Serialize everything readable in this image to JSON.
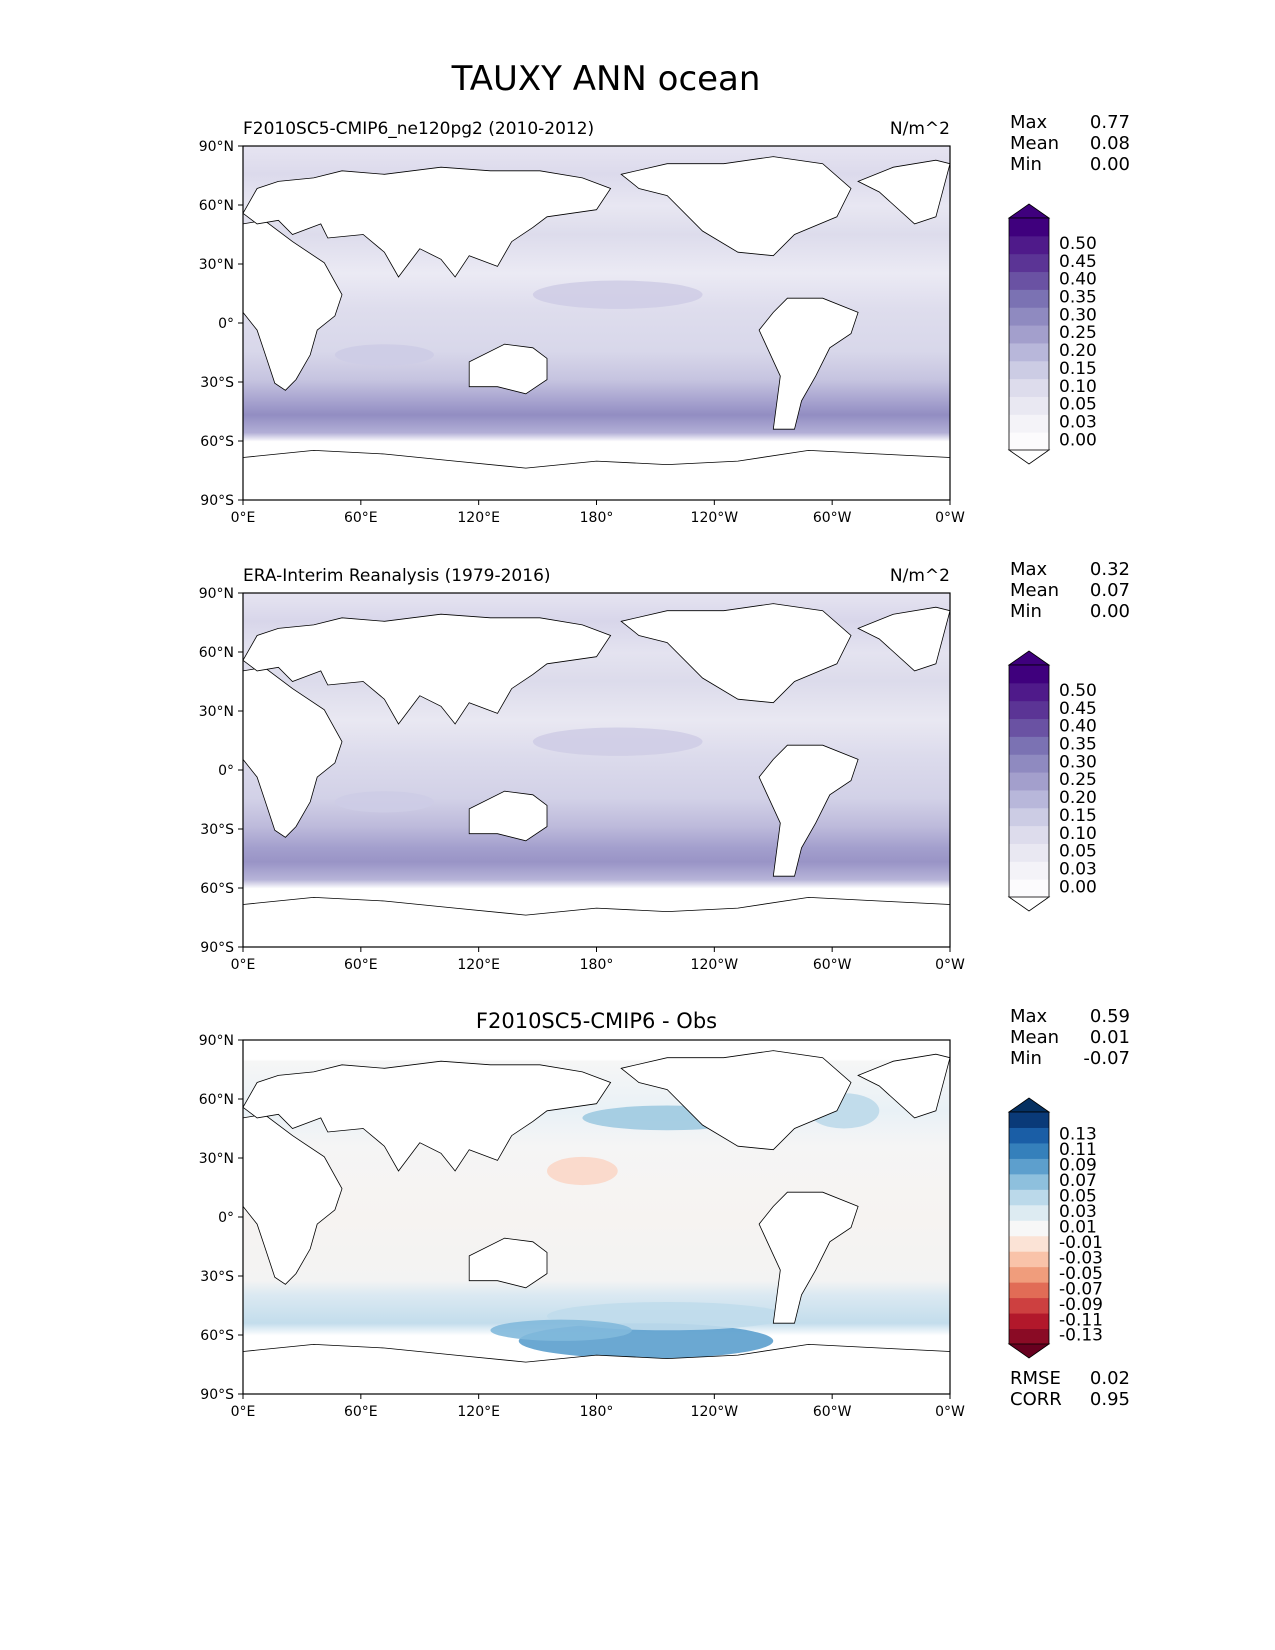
{
  "title": "TAUXY ANN ocean",
  "axes": {
    "lat_ticks": [
      "90°N",
      "60°N",
      "30°N",
      "0°",
      "30°S",
      "60°S",
      "90°S"
    ],
    "lon_ticks": [
      "0°E",
      "60°E",
      "120°E",
      "180°",
      "120°W",
      "60°W",
      "0°W"
    ]
  },
  "panels": [
    {
      "id": "model",
      "title_left": "F2010SC5-CMIP6_ne120pg2 (2010-2012)",
      "title_center": "",
      "units": "N/m^2",
      "stats": [
        {
          "label": "Max",
          "value": "0.77"
        },
        {
          "label": "Mean",
          "value": "0.08"
        },
        {
          "label": "Min",
          "value": "0.00"
        }
      ],
      "colorbar": {
        "labels": [
          "0.00",
          "0.03",
          "0.05",
          "0.10",
          "0.15",
          "0.20",
          "0.25",
          "0.30",
          "0.35",
          "0.40",
          "0.45",
          "0.50"
        ],
        "colors": [
          "#fcfbfd",
          "#f4f3f8",
          "#e9e8f2",
          "#dddcec",
          "#cccce4",
          "#b8b7da",
          "#a39fcc",
          "#8f8ac0",
          "#7b72b3",
          "#6a52a3",
          "#5b3495",
          "#4f1a8a",
          "#3f007d"
        ],
        "extend_low": "#ffffff",
        "extend_high": "#3f007d"
      },
      "extra_stats": []
    },
    {
      "id": "obs",
      "title_left": "ERA-Interim Reanalysis (1979-2016)",
      "title_center": "",
      "units": "N/m^2",
      "stats": [
        {
          "label": "Max",
          "value": "0.32"
        },
        {
          "label": "Mean",
          "value": "0.07"
        },
        {
          "label": "Min",
          "value": "0.00"
        }
      ],
      "colorbar": {
        "labels": [
          "0.00",
          "0.03",
          "0.05",
          "0.10",
          "0.15",
          "0.20",
          "0.25",
          "0.30",
          "0.35",
          "0.40",
          "0.45",
          "0.50"
        ],
        "colors": [
          "#fcfbfd",
          "#f4f3f8",
          "#e9e8f2",
          "#dddcec",
          "#cccce4",
          "#b8b7da",
          "#a39fcc",
          "#8f8ac0",
          "#7b72b3",
          "#6a52a3",
          "#5b3495",
          "#4f1a8a",
          "#3f007d"
        ],
        "extend_low": "#ffffff",
        "extend_high": "#3f007d"
      },
      "extra_stats": []
    },
    {
      "id": "diff",
      "title_left": "",
      "title_center": "F2010SC5-CMIP6 - Obs",
      "units": "",
      "stats": [
        {
          "label": "Max",
          "value": "0.59"
        },
        {
          "label": "Mean",
          "value": "0.01"
        },
        {
          "label": "Min",
          "value": "-0.07"
        }
      ],
      "colorbar": {
        "labels": [
          "-0.13",
          "-0.11",
          "-0.09",
          "-0.07",
          "-0.05",
          "-0.03",
          "-0.01",
          "0.01",
          "0.03",
          "0.05",
          "0.07",
          "0.09",
          "0.11",
          "0.13"
        ],
        "colors": [
          "#8a0b25",
          "#b2182b",
          "#cd4040",
          "#e16c56",
          "#f09d7c",
          "#f9c3a9",
          "#fbe3d6",
          "#f7f7f7",
          "#ddebf2",
          "#bbd9ea",
          "#8ec0dd",
          "#5d9fcd",
          "#3580bb",
          "#1a5ea6",
          "#0a3a78"
        ],
        "extend_low": "#67001f",
        "extend_high": "#053061"
      },
      "extra_stats": [
        {
          "label": "RMSE",
          "value": "0.02"
        },
        {
          "label": "CORR",
          "value": "0.95"
        }
      ]
    }
  ]
}
